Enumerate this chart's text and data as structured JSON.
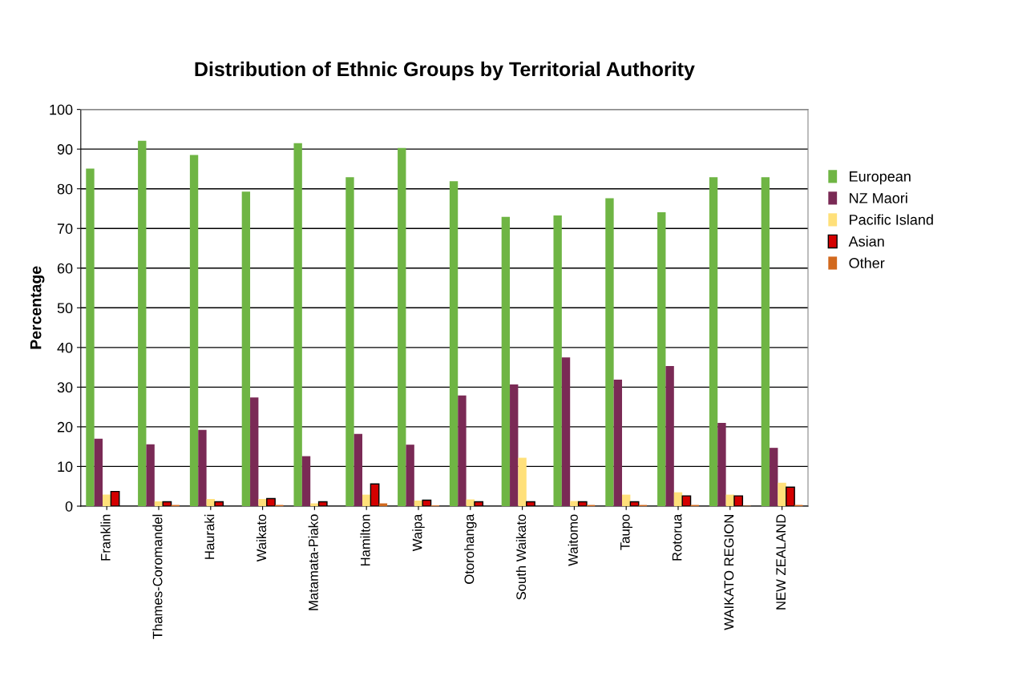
{
  "chart_data": {
    "type": "bar",
    "title": "Distribution of Ethnic Groups by Territorial Authority",
    "ylabel": "Percentage",
    "categories": [
      "Franklin",
      "Thames-Coromandel",
      "Hauraki",
      "Waikato",
      "Matamata-Piako",
      "Hamilton",
      "Waipa",
      "Otorohanga",
      "South Waikato",
      "Waitomo",
      "Taupo",
      "Rotorua",
      "WAIKATO REGION",
      "NEW ZEALAND"
    ],
    "series": [
      {
        "name": "European",
        "color": "#6fb544",
        "values": [
          85.1,
          92.1,
          88.5,
          79.3,
          91.5,
          82.9,
          90.3,
          81.9,
          72.9,
          73.3,
          77.6,
          74.1,
          82.9,
          82.9
        ]
      },
      {
        "name": "NZ Maori",
        "color": "#7a2a55",
        "values": [
          17.0,
          15.6,
          19.2,
          27.4,
          12.6,
          18.2,
          15.5,
          27.9,
          30.7,
          37.5,
          31.9,
          35.3,
          21.0,
          14.7
        ]
      },
      {
        "name": "Pacific Island",
        "color": "#ffe07a",
        "values": [
          2.9,
          1.2,
          1.8,
          1.8,
          0.7,
          2.9,
          1.4,
          1.7,
          12.2,
          1.3,
          2.9,
          3.5,
          2.9,
          5.9
        ]
      },
      {
        "name": "Asian",
        "color": "#d40000",
        "values": [
          3.7,
          1.1,
          1.1,
          1.9,
          1.1,
          5.6,
          1.5,
          1.1,
          1.1,
          1.1,
          1.1,
          2.6,
          2.6,
          4.8
        ]
      },
      {
        "name": "Other",
        "color": "#d2691e",
        "values": [
          0.0,
          0.3,
          0.0,
          0.3,
          0.0,
          0.7,
          0.2,
          0.0,
          0.0,
          0.3,
          0.3,
          0.3,
          0.1,
          0.3
        ]
      }
    ],
    "ylim": [
      0,
      100
    ],
    "yticks": [
      0,
      10,
      20,
      30,
      40,
      50,
      60,
      70,
      80,
      90,
      100
    ],
    "grid": "y",
    "legend": "right"
  }
}
